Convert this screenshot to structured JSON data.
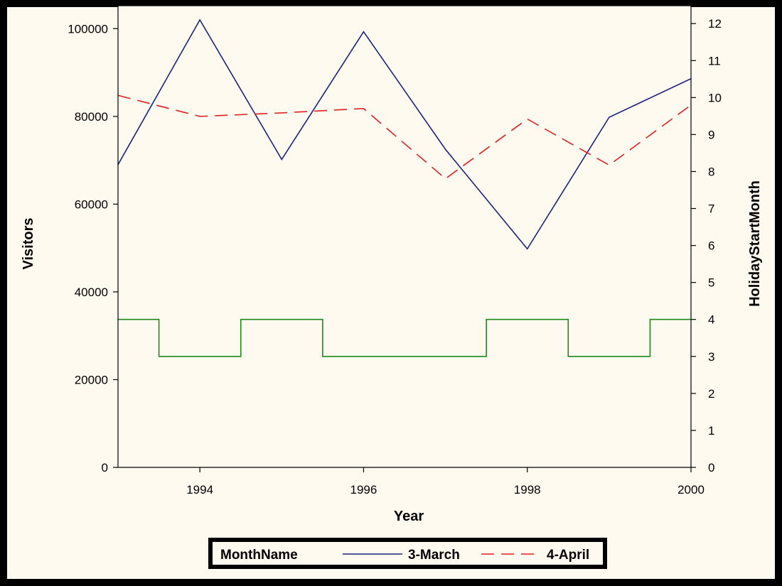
{
  "chart_data": {
    "type": "line",
    "xlabel": "Year",
    "ylabel": "Visitors",
    "y2label": "HolidayStartMonth",
    "xlim": [
      1993,
      2000
    ],
    "ylim": [
      0,
      102000
    ],
    "y2lim": [
      0,
      12.1
    ],
    "x_ticks": [
      "1994",
      "1996",
      "1998",
      "2000"
    ],
    "y_ticks": [
      "0",
      "20000",
      "40000",
      "60000",
      "80000",
      "100000"
    ],
    "y2_ticks": [
      "0",
      "1",
      "2",
      "3",
      "4",
      "5",
      "6",
      "7",
      "8",
      "9",
      "10",
      "11",
      "12"
    ],
    "x": [
      1993,
      1994,
      1995,
      1996,
      1997,
      1998,
      1999,
      2000
    ],
    "series": [
      {
        "name": "3-March",
        "axis": "left",
        "style": "solid",
        "color": "#1a237e",
        "values": [
          69000,
          102000,
          70200,
          99300,
          72500,
          49800,
          79800,
          88600
        ]
      },
      {
        "name": "4-April",
        "axis": "left",
        "style": "dashed",
        "color": "#e02020",
        "values": [
          84800,
          80000,
          80800,
          81800,
          65800,
          79400,
          68900,
          82600
        ]
      },
      {
        "axis": "right",
        "style": "step",
        "color": "#1b8a1b",
        "values": [
          4,
          3,
          4,
          3,
          3,
          4,
          3,
          4
        ]
      }
    ],
    "legend": {
      "title": "MonthName",
      "position": "bottom",
      "entries": [
        "3-March",
        "4-April"
      ]
    },
    "grid": false
  },
  "colors": {
    "background": "#fffaf0",
    "frame": "#000000"
  }
}
